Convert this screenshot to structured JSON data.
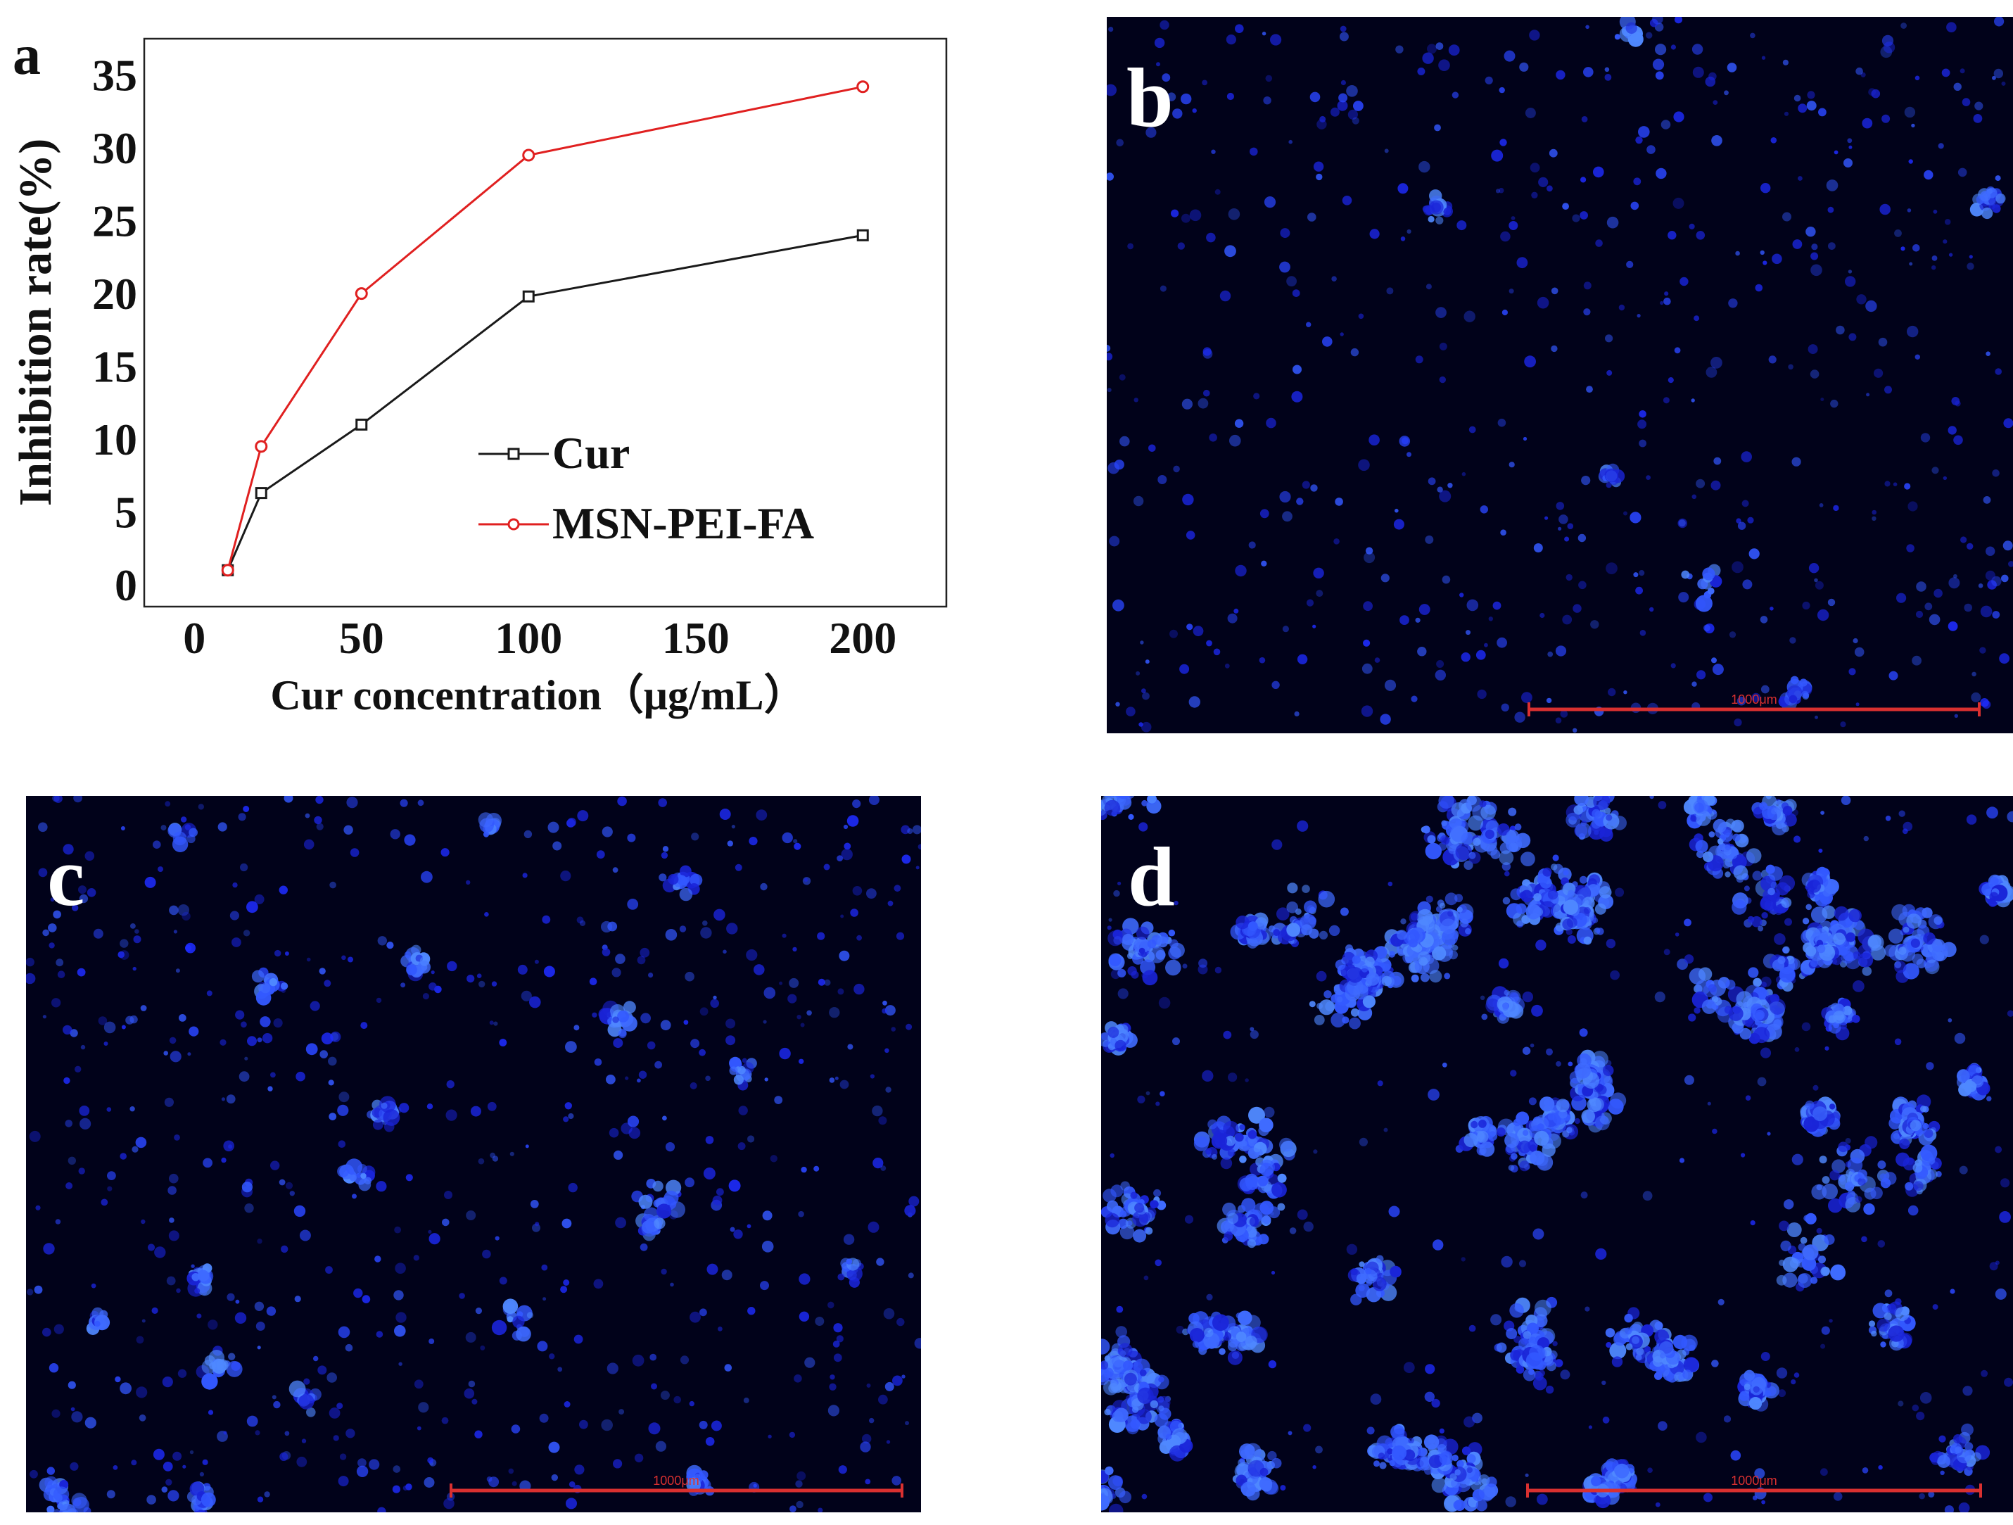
{
  "panels": {
    "a": {
      "label": "a"
    },
    "b": {
      "label": "b",
      "scale_bar": "1000μm"
    },
    "c": {
      "label": "c",
      "scale_bar": "1000μm"
    },
    "d": {
      "label": "d",
      "scale_bar": "1000μm"
    }
  },
  "colors": {
    "cur": "#1a1a1a",
    "msn": "#e02020",
    "microscopy_background": "#01021a",
    "stain": "#2a46ff",
    "scale_bar": "#d93030"
  },
  "chart_data": {
    "type": "line",
    "title": "",
    "xlabel": "Cur concentration（μg/mL）",
    "ylabel": "Inhibition rate(%)",
    "xlim": [
      -15,
      225
    ],
    "ylim": [
      -1.5,
      37.5
    ],
    "xticks": [
      0,
      50,
      100,
      150,
      200
    ],
    "yticks": [
      0,
      5,
      10,
      15,
      20,
      25,
      30,
      35
    ],
    "legend_position": "center-right",
    "grid": false,
    "series": [
      {
        "name": "Cur",
        "marker": "square",
        "color": "#1a1a1a",
        "x": [
          10,
          20,
          50,
          100,
          200
        ],
        "y": [
          1,
          6.3,
          11,
          19.8,
          24
        ]
      },
      {
        "name": "MSN-PEI-FA",
        "marker": "circle",
        "color": "#e02020",
        "x": [
          10,
          20,
          50,
          100,
          200
        ],
        "y": [
          1,
          9.5,
          20,
          29.5,
          34.2
        ]
      }
    ]
  }
}
